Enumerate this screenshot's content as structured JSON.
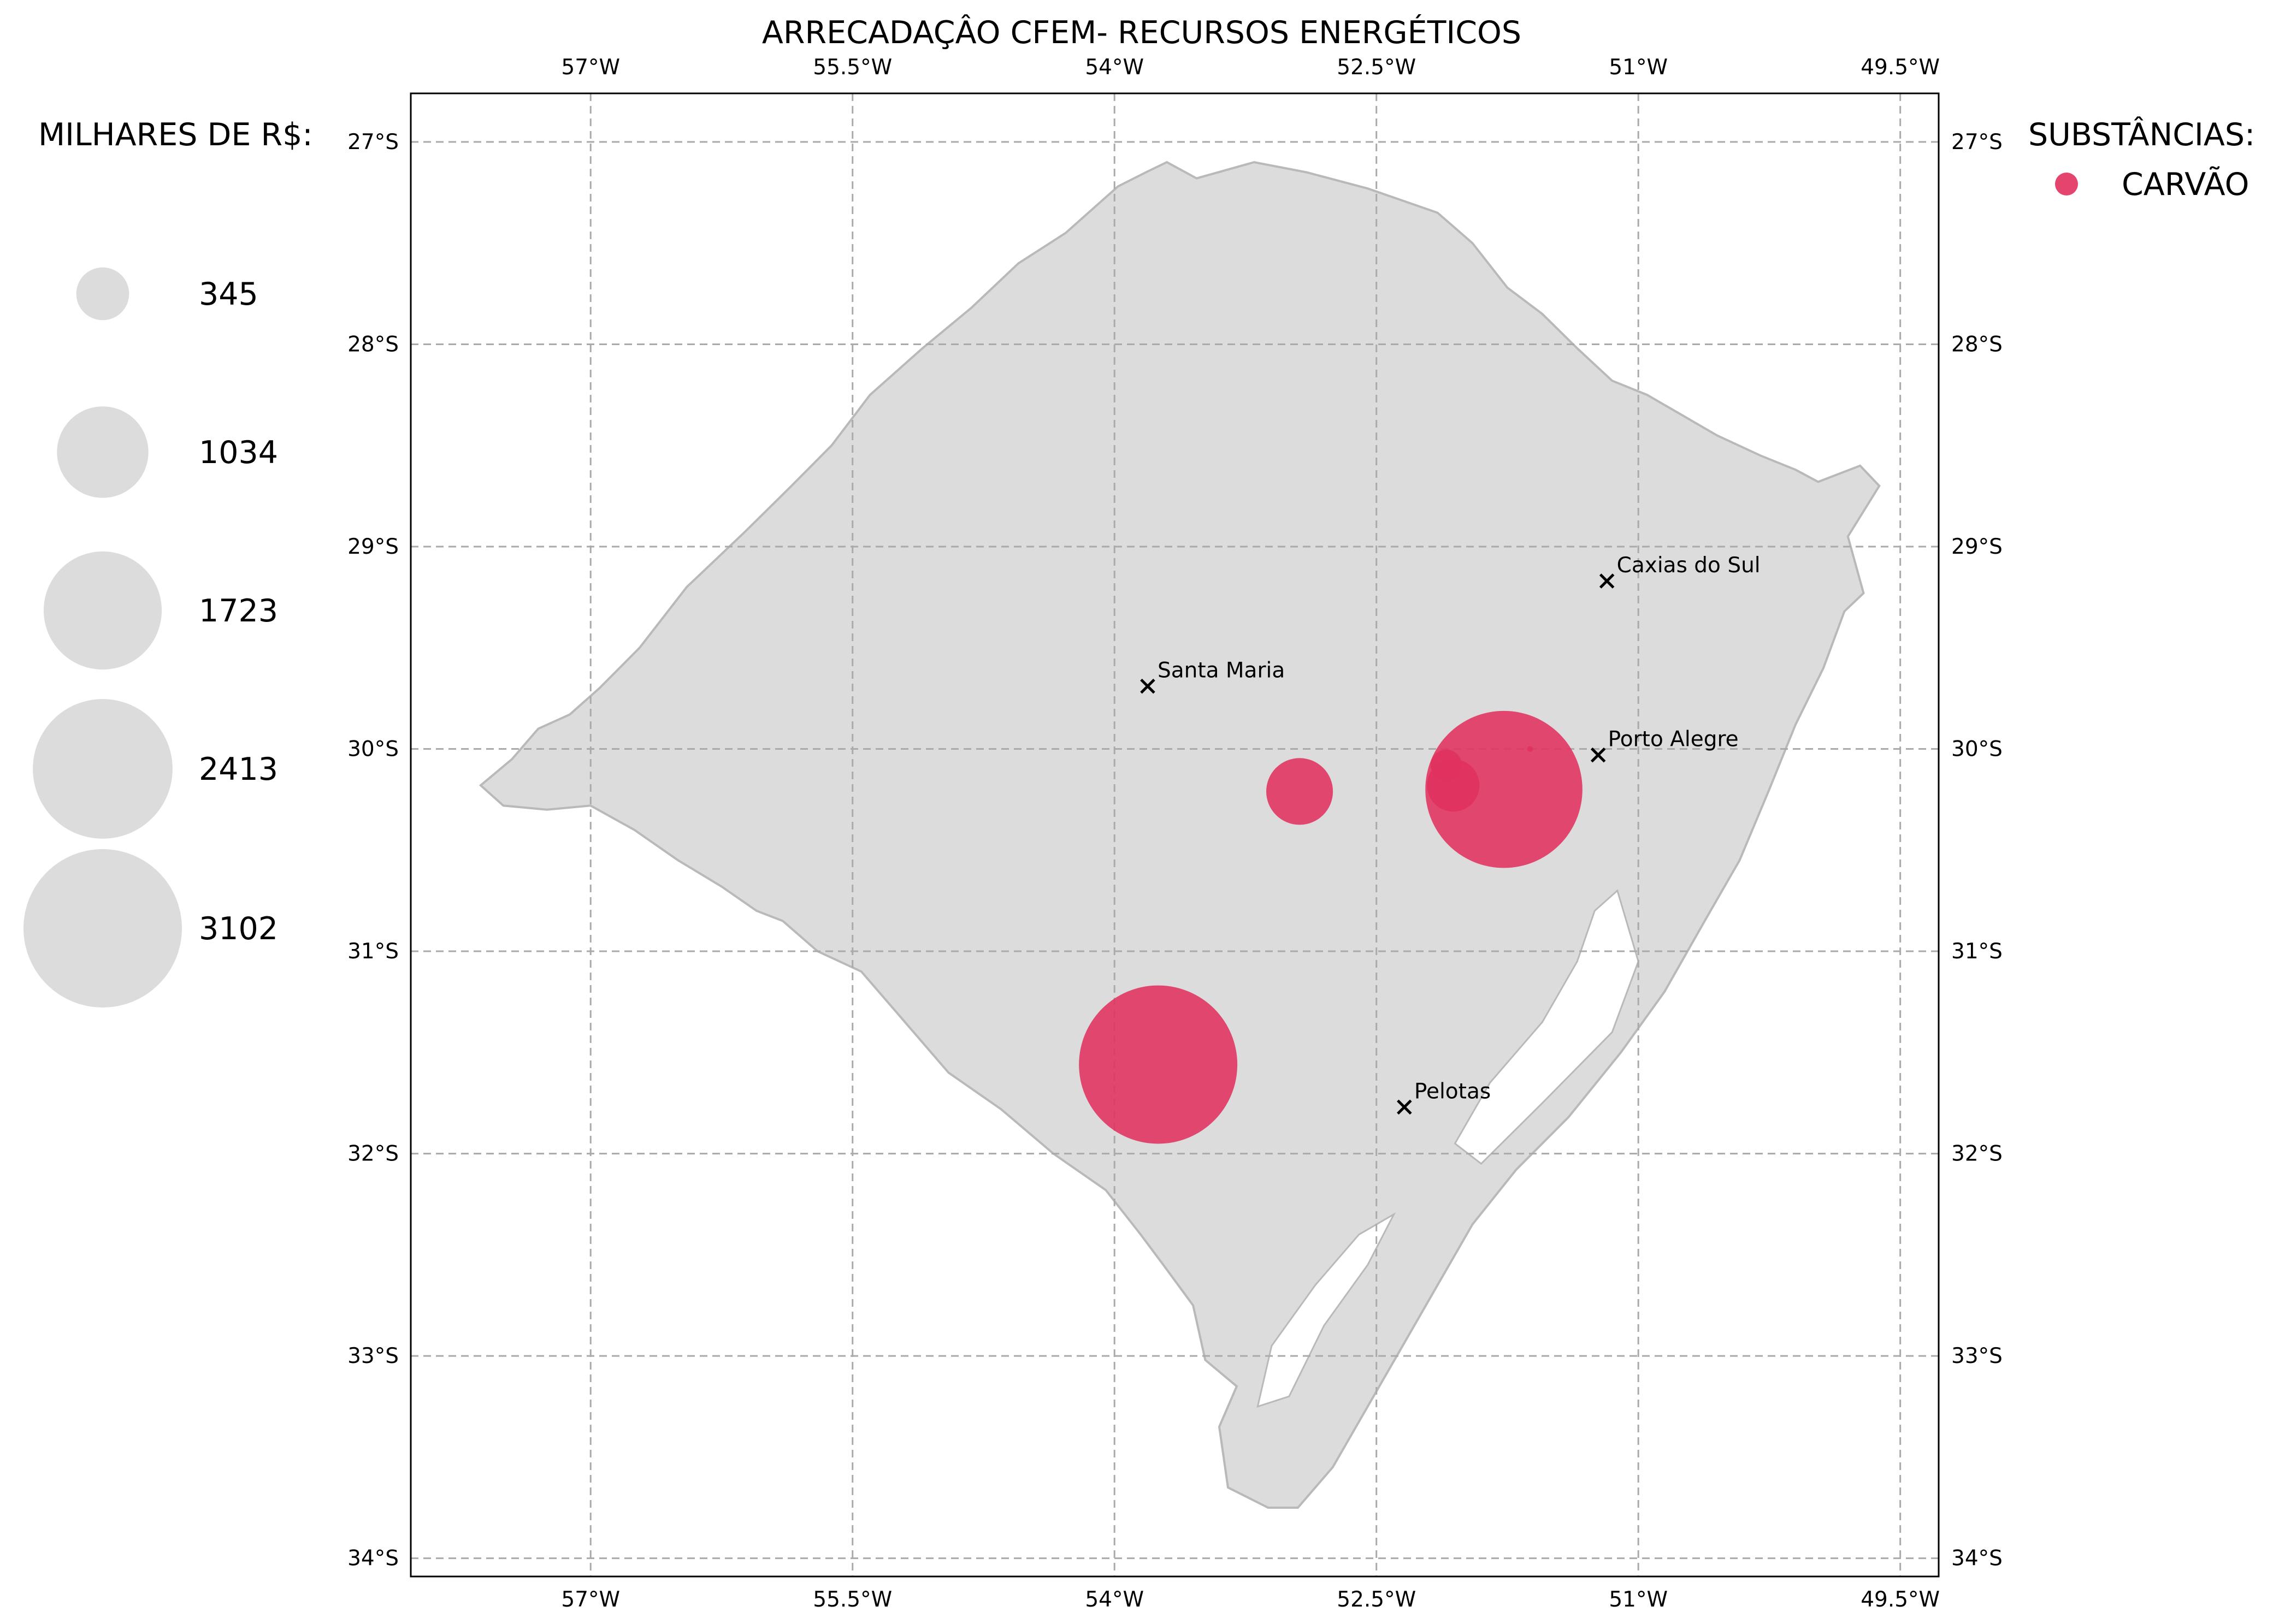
{
  "title": "ARRECADAÇÂO CFEM- RECURSOS ENERGÉTICOS",
  "size_legend": {
    "title": "MILHARES DE R$:",
    "entries": [
      {
        "label": "345",
        "value": 345
      },
      {
        "label": "1034",
        "value": 1034
      },
      {
        "label": "1723",
        "value": 1723
      },
      {
        "label": "2413",
        "value": 2413
      },
      {
        "label": "3102",
        "value": 3102
      }
    ]
  },
  "substance_legend": {
    "title": "SUBSTÂNCIAS:",
    "items": [
      {
        "label": "CARVÃO",
        "color": "#e0315e"
      }
    ]
  },
  "map": {
    "lon_ticks": [
      {
        "value": -57.0,
        "label": "57°W"
      },
      {
        "value": -55.5,
        "label": "55.5°W"
      },
      {
        "value": -54.0,
        "label": "54°W"
      },
      {
        "value": -52.5,
        "label": "52.5°W"
      },
      {
        "value": -51.0,
        "label": "51°W"
      },
      {
        "value": -49.5,
        "label": "49.5°W"
      }
    ],
    "lat_ticks": [
      {
        "value": -27,
        "label": "27°S"
      },
      {
        "value": -28,
        "label": "28°S"
      },
      {
        "value": -29,
        "label": "29°S"
      },
      {
        "value": -30,
        "label": "30°S"
      },
      {
        "value": -31,
        "label": "31°S"
      },
      {
        "value": -32,
        "label": "32°S"
      },
      {
        "value": -33,
        "label": "33°S"
      },
      {
        "value": -34,
        "label": "34°S"
      }
    ],
    "extent": {
      "lon_min": -58.03,
      "lon_max": -49.28,
      "lat_min": -34.09,
      "lat_max": -26.76
    },
    "gridlines": true,
    "land_color": "#dcdcdc",
    "border_color": "#b9b9b9",
    "cities": [
      {
        "name": "Caxias do Sul",
        "lon": -51.18,
        "lat": -29.17
      },
      {
        "name": "Santa Maria",
        "lon": -53.81,
        "lat": -29.69
      },
      {
        "name": "Porto Alegre",
        "lon": -51.23,
        "lat": -30.03
      },
      {
        "name": "Pelotas",
        "lon": -52.34,
        "lat": -31.77
      }
    ],
    "bubbles": [
      {
        "substance": "CARVÃO",
        "lon": -53.75,
        "lat": -31.56,
        "value": 3100
      },
      {
        "substance": "CARVÃO",
        "lon": -51.77,
        "lat": -30.2,
        "value": 3050
      },
      {
        "substance": "CARVÃO",
        "lon": -52.94,
        "lat": -30.21,
        "value": 550
      },
      {
        "substance": "CARVÃO",
        "lon": -52.06,
        "lat": -30.18,
        "value": 340
      },
      {
        "substance": "CARVÃO",
        "lon": -52.1,
        "lat": -30.08,
        "value": 120
      },
      {
        "substance": "CARVÃO",
        "lon": -51.62,
        "lat": -30.0,
        "value": 4
      }
    ]
  }
}
